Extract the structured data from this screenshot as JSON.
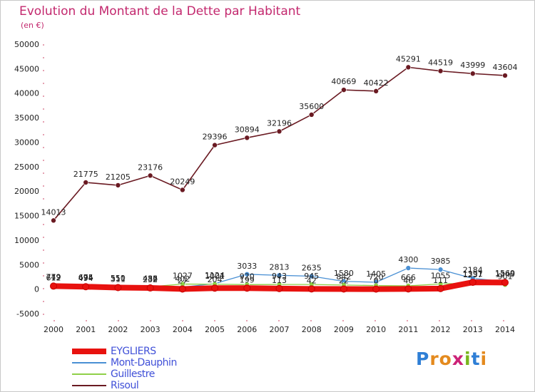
{
  "header": {
    "title": "Evolution du Montant de la Dette par Habitant",
    "unit": "(en €)"
  },
  "brand": {
    "letters": [
      "P",
      "r",
      "o",
      "x",
      "i",
      "t",
      "i"
    ],
    "colors": [
      "#2f7fd6",
      "#e48a1e",
      "#e48a1e",
      "#cc2277",
      "#7ab51d",
      "#2f7fd6",
      "#e48a1e"
    ]
  },
  "chart_data": {
    "type": "line",
    "title": "Evolution du Montant de la Dette par Habitant",
    "subtitle": "(en €)",
    "xlabel": "",
    "ylabel": "",
    "x": [
      "2000",
      "2001",
      "2002",
      "2003",
      "2004",
      "2005",
      "2006",
      "2007",
      "2008",
      "2009",
      "2010",
      "2011",
      "2012",
      "2013",
      "2014"
    ],
    "ylim": [
      -5000,
      50000
    ],
    "yticks": [
      "-5000",
      "0",
      "5000",
      "10000",
      "15000",
      "20000",
      "25000",
      "30000",
      "35000",
      "40000",
      "45000",
      "50000"
    ],
    "grid": false,
    "legend_position": "bottom-left",
    "series": [
      {
        "name": "EYGLIERS",
        "color": "#e8120f",
        "values": [
          612,
          494,
          311,
          232,
          27,
          204,
          199,
          113,
          42,
          22,
          0,
          46,
          111,
          1391,
          1349
        ],
        "labels": [
          "612",
          "494",
          "311",
          "232",
          "27",
          "204",
          "199",
          "113",
          "42",
          "22",
          "0",
          "46",
          "111",
          "1391",
          "1349"
        ]
      },
      {
        "name": "Mont-Dauphin",
        "color": "#4a90d4",
        "values": [
          779,
          675,
          511,
          436,
          402,
          1124,
          3033,
          2813,
          2635,
          1580,
          1405,
          4300,
          3985,
          2184,
          1569
        ],
        "labels": [
          "779",
          "675",
          "511",
          "436",
          "402",
          "1124",
          "3033",
          "2813",
          "2635",
          "1580",
          "1405",
          "4300",
          "3985",
          "2184",
          "1569"
        ]
      },
      {
        "name": "Guillestre",
        "color": "#8fd048",
        "values": [
          749,
          694,
          550,
          482,
          1027,
          1001,
          920,
          943,
          945,
          842,
          720,
          666,
          1055,
          1237,
          901
        ],
        "labels": [
          "749",
          "694",
          "550",
          "482",
          "1027",
          "1001",
          "920",
          "943",
          "945",
          "842",
          "720",
          "666",
          "1055",
          "1237",
          "901"
        ]
      },
      {
        "name": "Risoul",
        "color": "#6a1a22",
        "values": [
          14013,
          21775,
          21205,
          23176,
          20249,
          29396,
          30894,
          32196,
          35600,
          40669,
          40422,
          45291,
          44519,
          43999,
          43604
        ],
        "labels": [
          "14013",
          "21775",
          "21205",
          "23176",
          "20249",
          "29396",
          "30894",
          "32196",
          "35600",
          "40669",
          "40422",
          "45291",
          "44519",
          "43999",
          "43604"
        ]
      }
    ]
  }
}
